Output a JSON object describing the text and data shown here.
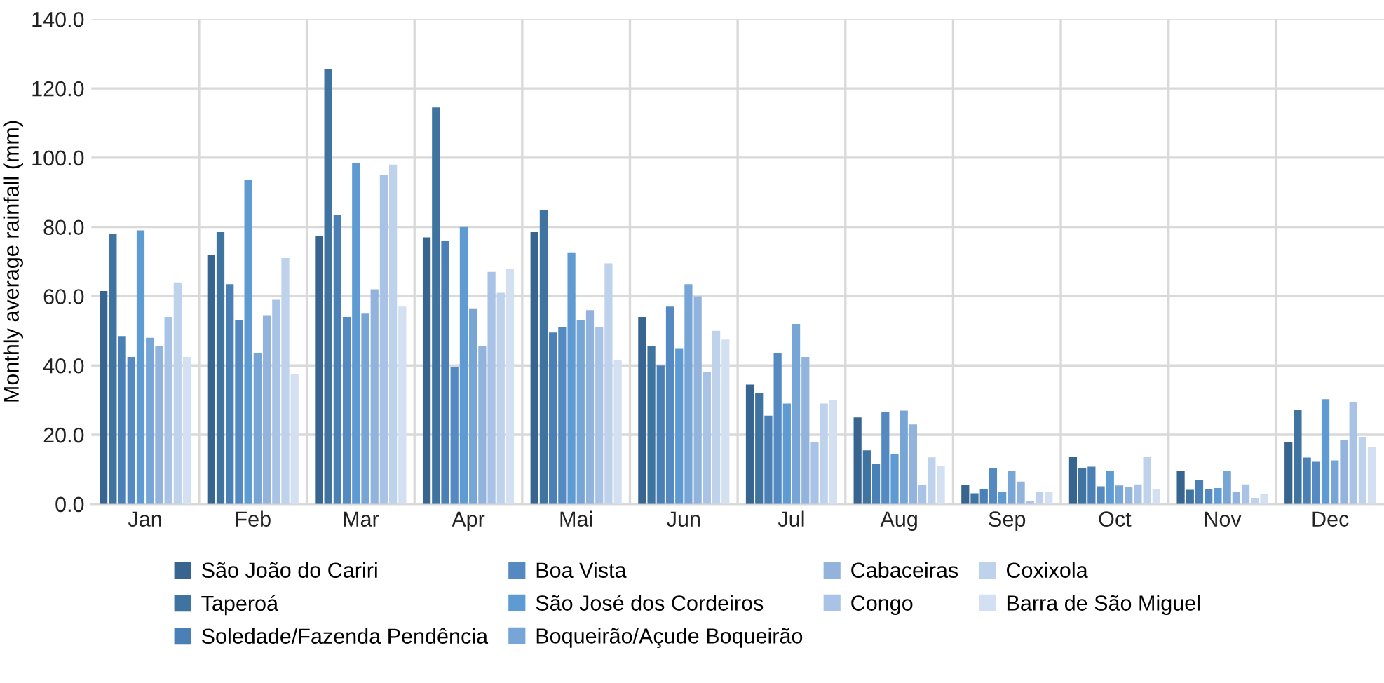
{
  "chart_data": {
    "type": "bar",
    "ylabel": "Monthly average rainfall (mm)",
    "categories": [
      "Jan",
      "Feb",
      "Mar",
      "Apr",
      "Mai",
      "Jun",
      "Jul",
      "Aug",
      "Sep",
      "Oct",
      "Nov",
      "Dec"
    ],
    "ylim": [
      0,
      140
    ],
    "yticks": [
      {
        "value": 0,
        "label": "0.0"
      },
      {
        "value": 20,
        "label": "20.0"
      },
      {
        "value": 40,
        "label": "40.0"
      },
      {
        "value": 60,
        "label": "60.0"
      },
      {
        "value": 80,
        "label": "80.0"
      },
      {
        "value": 100,
        "label": "100.0"
      },
      {
        "value": 120,
        "label": "120.0"
      },
      {
        "value": 140,
        "label": "140.0"
      }
    ],
    "grid": true,
    "legend": "bottom",
    "series": [
      {
        "name": "São João do Cariri",
        "color": "#386590",
        "values": [
          61.5,
          72,
          77.5,
          77,
          78.5,
          54,
          34.5,
          25,
          5.5,
          13.7,
          9.7,
          18.0
        ]
      },
      {
        "name": "Taperoá",
        "color": "#3f73a0",
        "values": [
          78,
          78.5,
          125.5,
          114.5,
          85,
          45.5,
          32,
          15.5,
          3.1,
          10.4,
          4.1,
          27.1
        ]
      },
      {
        "name": "Soledade/Fazenda Pendência",
        "color": "#4a80b5",
        "values": [
          48.5,
          63.5,
          83.5,
          76,
          49.5,
          40,
          25.5,
          11.5,
          4.2,
          10.8,
          6.9,
          13.4
        ]
      },
      {
        "name": "Boa Vista",
        "color": "#5489c2",
        "values": [
          42.5,
          53,
          54,
          39.5,
          51,
          57,
          43.5,
          26.5,
          10.5,
          5.1,
          4.3,
          12.2
        ]
      },
      {
        "name": "São José dos Cordeiros",
        "color": "#5e9bd3",
        "values": [
          79,
          93.5,
          98.5,
          80,
          72.5,
          45,
          29,
          14.5,
          3.5,
          9.7,
          4.6,
          30.3
        ]
      },
      {
        "name": "Boqueirão/Açude Boqueirão",
        "color": "#76a5d6",
        "values": [
          48,
          43.5,
          55,
          56.5,
          53,
          63.5,
          52,
          27,
          9.6,
          5.4,
          9.7,
          12.6
        ]
      },
      {
        "name": "Cabaceiras",
        "color": "#92b3dc",
        "values": [
          45.5,
          54.5,
          62,
          45.5,
          56,
          60,
          42.5,
          23,
          6.5,
          5.0,
          3.5,
          18.5
        ]
      },
      {
        "name": "Congo",
        "color": "#a9c3e6",
        "values": [
          54,
          59,
          95,
          67,
          51,
          38,
          18,
          5.5,
          0.9,
          5.7,
          5.7,
          29.5
        ]
      },
      {
        "name": "Coxixola",
        "color": "#bed2ec",
        "values": [
          64,
          71,
          98,
          61,
          69.5,
          50,
          29,
          13.5,
          3.5,
          13.7,
          1.8,
          19.4
        ]
      },
      {
        "name": "Barra de São Miguel",
        "color": "#d3e0f2",
        "values": [
          42.5,
          37.5,
          57,
          68,
          41.5,
          47.5,
          30,
          11,
          3.5,
          4.2,
          3.0,
          16.4
        ]
      }
    ]
  }
}
